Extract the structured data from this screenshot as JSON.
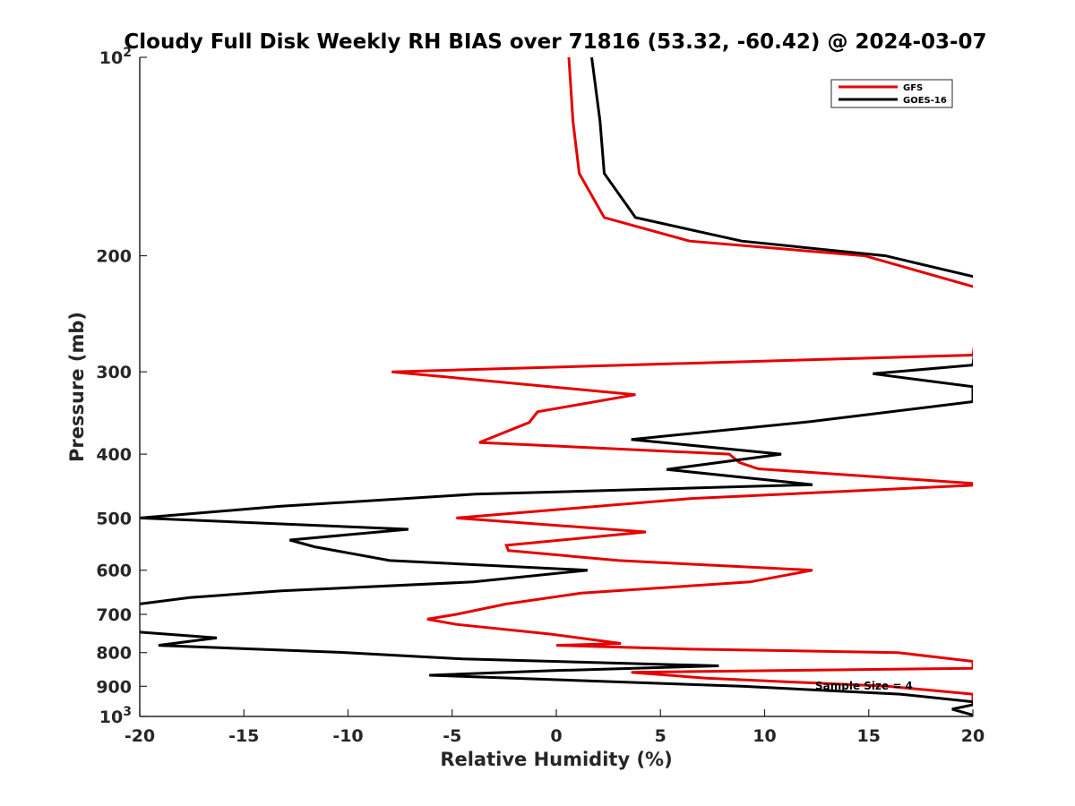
{
  "chart_data": {
    "type": "line",
    "title": "Cloudy Full Disk Weekly RH BIAS over 71816 (53.32, -60.42) @ 2024-03-07",
    "xlabel": "Relative Humidity (%)",
    "ylabel": "Pressure (mb)",
    "xlim": [
      -20,
      20
    ],
    "ylim": [
      100,
      1000
    ],
    "y_scale": "log",
    "y_reversed": true,
    "grid": false,
    "legend_position": "top-right",
    "x_ticks": [
      "-20",
      "-15",
      "-10",
      "-5",
      "0",
      "5",
      "10",
      "15",
      "20"
    ],
    "y_ticks": [
      {
        "value": 100,
        "base": "10",
        "exp": "2"
      },
      {
        "value": 200,
        "label": "200"
      },
      {
        "value": 300,
        "label": "300"
      },
      {
        "value": 400,
        "label": "400"
      },
      {
        "value": 500,
        "label": "500"
      },
      {
        "value": 600,
        "label": "600"
      },
      {
        "value": 700,
        "label": "700"
      },
      {
        "value": 800,
        "label": "800"
      },
      {
        "value": 900,
        "label": "900"
      },
      {
        "value": 1000,
        "base": "10",
        "exp": "3"
      }
    ],
    "annotation": "Sample Size = 4",
    "series": [
      {
        "name": "GFS",
        "color": "#e60000",
        "points": [
          [
            0.6,
            100
          ],
          [
            0.8,
            125
          ],
          [
            1.1,
            150
          ],
          [
            2.3,
            175
          ],
          [
            6.4,
            190
          ],
          [
            14.8,
            200
          ],
          [
            20.5,
            225
          ],
          [
            20.0,
            283
          ],
          [
            -7.9,
            300
          ],
          [
            3.8,
            325
          ],
          [
            -0.9,
            345
          ],
          [
            -1.3,
            358
          ],
          [
            -3.7,
            384
          ],
          [
            8.3,
            400
          ],
          [
            8.8,
            412
          ],
          [
            9.7,
            421
          ],
          [
            20.0,
            443
          ],
          [
            20.0,
            446
          ],
          [
            6.5,
            467
          ],
          [
            -4.8,
            500
          ],
          [
            4.3,
            525
          ],
          [
            -2.4,
            550
          ],
          [
            -2.3,
            560
          ],
          [
            3.0,
            580
          ],
          [
            12.3,
            600
          ],
          [
            9.3,
            625
          ],
          [
            1.2,
            650
          ],
          [
            -2.4,
            675
          ],
          [
            -4.8,
            700
          ],
          [
            -6.2,
            712
          ],
          [
            -4.8,
            725
          ],
          [
            -0.3,
            750
          ],
          [
            3.1,
            775
          ],
          [
            0.0,
            780
          ],
          [
            6.2,
            790
          ],
          [
            16.4,
            800
          ],
          [
            20.0,
            825
          ],
          [
            20.0,
            845
          ],
          [
            3.6,
            857
          ],
          [
            7.2,
            875
          ],
          [
            15.9,
            900
          ],
          [
            20.0,
            925
          ],
          [
            20.0,
            955
          ]
        ]
      },
      {
        "name": "GOES-16",
        "color": "#000000",
        "points": [
          [
            1.7,
            100
          ],
          [
            2.1,
            125
          ],
          [
            2.3,
            150
          ],
          [
            3.8,
            175
          ],
          [
            8.9,
            190
          ],
          [
            15.8,
            200
          ],
          [
            20.0,
            215
          ],
          [
            20.5,
            220
          ],
          [
            20.0,
            293
          ],
          [
            15.2,
            302
          ],
          [
            20.0,
            316
          ],
          [
            20.0,
            333
          ],
          [
            12.2,
            357
          ],
          [
            3.6,
            380
          ],
          [
            10.8,
            400
          ],
          [
            5.3,
            422
          ],
          [
            12.3,
            445
          ],
          [
            -3.9,
            460
          ],
          [
            -13.3,
            480
          ],
          [
            -20.0,
            500
          ],
          [
            -7.1,
            520
          ],
          [
            -12.8,
            540
          ],
          [
            -11.6,
            553
          ],
          [
            -8.0,
            580
          ],
          [
            1.5,
            600
          ],
          [
            -4.0,
            625
          ],
          [
            -13.2,
            645
          ],
          [
            -17.6,
            660
          ],
          [
            -20.0,
            675
          ],
          [
            -20.5,
            680
          ],
          [
            -20.0,
            745
          ],
          [
            -16.3,
            760
          ],
          [
            -19.1,
            780
          ],
          [
            -10.1,
            800
          ],
          [
            -4.5,
            818
          ],
          [
            7.8,
            838
          ],
          [
            -0.1,
            852
          ],
          [
            -6.1,
            866
          ],
          [
            8.9,
            900
          ],
          [
            16.5,
            925
          ],
          [
            20.0,
            950
          ],
          [
            20.0,
            960
          ],
          [
            19.0,
            975
          ],
          [
            20.0,
            995
          ]
        ]
      }
    ]
  }
}
